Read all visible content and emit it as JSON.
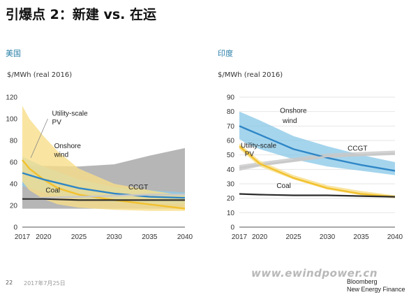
{
  "page": {
    "title": "引爆点 2：新建 vs. 在运",
    "footer_page": "22",
    "footer_date": "2017年7月25日",
    "watermark": "www.ewindpower.cn",
    "brand_line1": "Bloomberg",
    "brand_line2": "New Energy Finance"
  },
  "colors": {
    "pv": "#f2c12e",
    "pv_band": "#f7df8a",
    "onshore": "#2f86c6",
    "onshore_band": "#8fcbe8",
    "ccgt": "#c8c8c8",
    "coal": "#2b2b2b",
    "region_label": "#2a7fa8",
    "grey_band": "#9e9e9e"
  },
  "chart_data": [
    {
      "type": "line",
      "region": "美国",
      "ylabel": "$/MWh (real 2016)",
      "ylim": [
        0,
        120
      ],
      "yticks": [
        0,
        20,
        40,
        60,
        80,
        100,
        120
      ],
      "xlim": [
        2017,
        2040
      ],
      "xticks": [
        2017,
        2020,
        2025,
        2030,
        2035,
        2040
      ],
      "bands": [
        {
          "name": "Coal/CCGT existing range",
          "color": "grey_band",
          "x": [
            2017,
            2025,
            2030,
            2035,
            2040
          ],
          "low": [
            17,
            17,
            17,
            17,
            17
          ],
          "high": [
            57,
            56,
            58,
            66,
            73
          ]
        },
        {
          "name": "Onshore wind new",
          "color": "onshore_band",
          "x": [
            2017,
            2020,
            2025,
            2030,
            2035,
            2040
          ],
          "low": [
            38,
            32,
            26,
            23,
            22,
            21
          ],
          "high": [
            65,
            56,
            44,
            37,
            34,
            32
          ]
        },
        {
          "name": "Utility-scale PV new",
          "color": "pv_band",
          "x": [
            2017,
            2018,
            2020,
            2022,
            2025,
            2030,
            2035,
            2040
          ],
          "low": [
            42,
            34,
            26,
            21,
            18,
            16,
            15,
            15
          ],
          "high": [
            112,
            100,
            84,
            70,
            54,
            40,
            34,
            29
          ]
        }
      ],
      "series": [
        {
          "name": "Utility-scale PV",
          "color": "pv",
          "x": [
            2017,
            2018,
            2020,
            2022,
            2025,
            2030,
            2035,
            2040
          ],
          "values": [
            62,
            54,
            44,
            36,
            30,
            25,
            21,
            17
          ]
        },
        {
          "name": "Onshore wind",
          "color": "onshore",
          "x": [
            2017,
            2020,
            2025,
            2030,
            2035,
            2040
          ],
          "values": [
            50,
            44,
            36,
            31,
            28,
            27
          ]
        },
        {
          "name": "CCGT",
          "color": "ccgt",
          "x": [
            2017,
            2020,
            2025,
            2030,
            2035,
            2040
          ],
          "values": [
            26,
            27,
            28,
            29,
            30,
            30
          ]
        },
        {
          "name": "Coal",
          "color": "coal",
          "x": [
            2017,
            2020,
            2025,
            2030,
            2035,
            2040
          ],
          "values": [
            26,
            26,
            25,
            25,
            25,
            25
          ]
        }
      ],
      "annotations": [
        {
          "text": "Utility-scale",
          "x": 2021.2,
          "y": 103
        },
        {
          "text": "PV",
          "x": 2021.2,
          "y": 95
        },
        {
          "text": "Onshore",
          "x": 2021.5,
          "y": 73
        },
        {
          "text": "wind",
          "x": 2021.5,
          "y": 65
        },
        {
          "text": "Coal",
          "x": 2020.3,
          "y": 32
        },
        {
          "text": "CCGT",
          "x": 2032,
          "y": 35
        }
      ]
    },
    {
      "type": "line",
      "region": "印度",
      "ylabel": "$/MWh (real 2016)",
      "ylim": [
        0,
        90
      ],
      "yticks": [
        0,
        10,
        20,
        30,
        40,
        50,
        60,
        70,
        80,
        90
      ],
      "xlim": [
        2017,
        2040
      ],
      "xticks": [
        2017,
        2020,
        2025,
        2030,
        2035,
        2040
      ],
      "bands": [
        {
          "name": "Onshore wind new",
          "color": "onshore_band",
          "x": [
            2017,
            2018,
            2020,
            2025,
            2030,
            2035,
            2040
          ],
          "low": [
            61,
            58,
            54,
            47,
            42,
            39,
            36
          ],
          "high": [
            80,
            78,
            74,
            63,
            56,
            50,
            45
          ]
        },
        {
          "name": "CCGT new",
          "color": "ccgt",
          "x": [
            2017,
            2020,
            2025,
            2030,
            2035,
            2040
          ],
          "low": [
            39,
            42,
            45,
            48,
            49,
            50
          ],
          "high": [
            43,
            45,
            48,
            51,
            52,
            53
          ]
        },
        {
          "name": "Utility-scale PV new",
          "color": "pv_band",
          "x": [
            2017,
            2020,
            2025,
            2030,
            2035,
            2040
          ],
          "low": [
            54,
            42,
            33,
            26,
            22,
            20
          ],
          "high": [
            58,
            46,
            36,
            29,
            25,
            22
          ]
        }
      ],
      "series": [
        {
          "name": "Onshore wind",
          "color": "onshore",
          "x": [
            2017,
            2018,
            2020,
            2025,
            2030,
            2035,
            2040
          ],
          "values": [
            70,
            68,
            64,
            54,
            48,
            43,
            39
          ]
        },
        {
          "name": "CCGT",
          "color": "ccgt",
          "x": [
            2017,
            2020,
            2025,
            2030,
            2035,
            2040
          ],
          "values": [
            41,
            43,
            46,
            49,
            50,
            51
          ]
        },
        {
          "name": "Utility-scale PV",
          "color": "pv",
          "x": [
            2017,
            2020,
            2025,
            2030,
            2035,
            2040
          ],
          "values": [
            56,
            44,
            34,
            27,
            23,
            21
          ]
        },
        {
          "name": "Coal",
          "color": "coal",
          "x": [
            2017,
            2020,
            2025,
            2030,
            2035,
            2040
          ],
          "values": [
            23,
            22.5,
            22,
            22,
            21.5,
            21
          ]
        }
      ],
      "annotations": [
        {
          "text": "Onshore",
          "x": 2023,
          "y": 79
        },
        {
          "text": "wind",
          "x": 2023.4,
          "y": 72
        },
        {
          "text": "Utility-scale",
          "x": 2017.2,
          "y": 55
        },
        {
          "text": "PV",
          "x": 2017.8,
          "y": 49
        },
        {
          "text": "CCGT",
          "x": 2033,
          "y": 53
        },
        {
          "text": "Coal",
          "x": 2022.5,
          "y": 27
        }
      ]
    }
  ]
}
